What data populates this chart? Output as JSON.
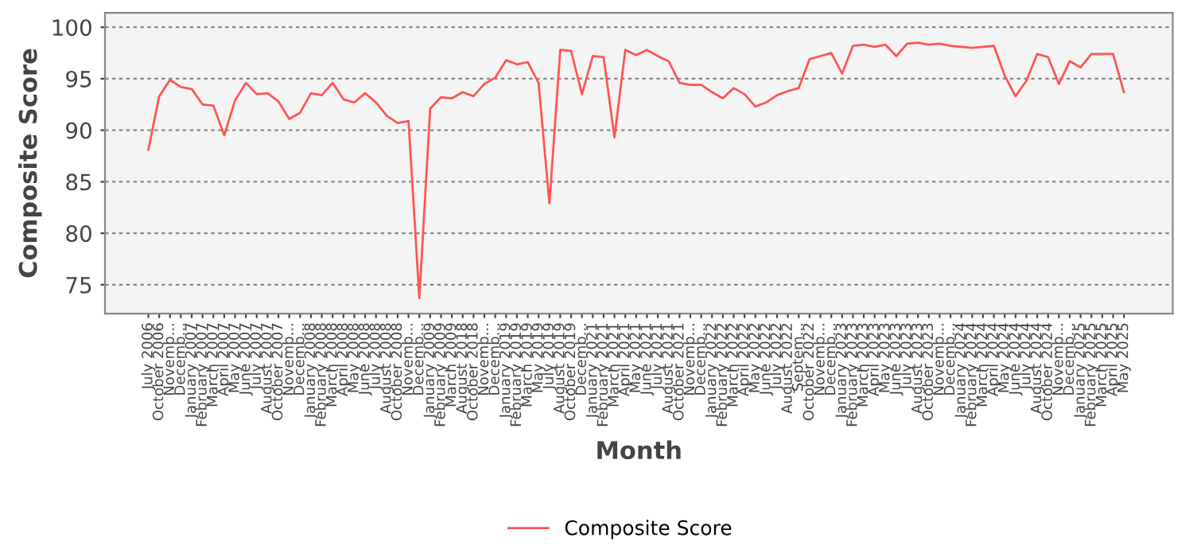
{
  "chart_data": {
    "type": "line",
    "xlabel": "Month",
    "ylabel": "Composite Score",
    "categories": [
      "July 2006",
      "October 2006",
      "Novemb...",
      "Decemb...",
      "January 2007",
      "February 2007",
      "March 2007",
      "April 2007",
      "May 2007",
      "June 2007",
      "July 2007",
      "August 2007",
      "October 2007",
      "Novemb...",
      "Decemb...",
      "January 2008",
      "February 2008",
      "March 2008",
      "April 2008",
      "May 2008",
      "June 2008",
      "July 2008",
      "August 2008",
      "October 2008",
      "Novemb...",
      "Decemb...",
      "January 2009",
      "February 2009",
      "March 2009",
      "August 2018",
      "October 2018",
      "Novemb...",
      "Decemb...",
      "January 2019",
      "February 2019",
      "March 2019",
      "May 2019",
      "July 2019",
      "August 2019",
      "October 2019",
      "Decemb...",
      "January 2021",
      "February 2021",
      "March 2021",
      "April 2021",
      "May 2021",
      "June 2021",
      "July 2021",
      "August 2021",
      "October 2021",
      "Novemb...",
      "Decemb...",
      "January 2022",
      "February 2022",
      "March 2022",
      "April 2022",
      "May 2022",
      "June 2022",
      "July 2022",
      "August 2022",
      "Septem...",
      "October 2022",
      "Novemb...",
      "Decemb...",
      "January 2023",
      "February 2023",
      "March 2023",
      "April 2023",
      "May 2023",
      "June 2023",
      "July 2023",
      "August 2023",
      "October 2023",
      "Novemb...",
      "Decemb...",
      "January 2024",
      "February 2024",
      "March 2024",
      "April 2024",
      "May 2024",
      "June 2024",
      "July 2024",
      "August 2024",
      "October 2024",
      "Novemb...",
      "Decemb...",
      "January 2025",
      "February 2025",
      "March 2025",
      "April 2025",
      "May 2025"
    ],
    "series": [
      {
        "name": "Composite Score",
        "color": "#ff5555",
        "values": [
          88.1,
          93.3,
          94.9,
          94.2,
          94.0,
          92.5,
          92.4,
          89.5,
          92.9,
          94.6,
          93.5,
          93.6,
          92.8,
          91.1,
          91.7,
          93.6,
          93.4,
          94.6,
          93.0,
          92.7,
          93.6,
          92.7,
          91.4,
          90.7,
          90.9,
          73.7,
          92.1,
          93.2,
          93.1,
          93.7,
          93.3,
          94.5,
          95.1,
          96.8,
          96.4,
          96.6,
          94.6,
          82.9,
          97.8,
          97.7,
          93.5,
          97.2,
          97.1,
          89.3,
          97.8,
          97.3,
          97.8,
          97.2,
          96.7,
          94.6,
          94.4,
          94.4,
          93.7,
          93.1,
          94.1,
          93.5,
          92.3,
          92.7,
          93.4,
          93.8,
          94.1,
          96.9,
          97.2,
          97.5,
          95.5,
          98.2,
          98.3,
          98.1,
          98.3,
          97.2,
          98.4,
          98.5,
          98.3,
          98.4,
          98.2,
          98.1,
          98.0,
          98.1,
          98.2,
          95.3,
          93.3,
          94.8,
          97.4,
          97.1,
          94.5,
          96.7,
          96.1,
          97.4,
          97.4,
          97.4,
          93.7
        ]
      }
    ],
    "ylim": [
      72.2,
      101.4
    ],
    "yticks": [
      75,
      80,
      85,
      90,
      95,
      100
    ],
    "grid": "y",
    "legend": "bottom",
    "line_style": "solid",
    "marker": "none"
  }
}
